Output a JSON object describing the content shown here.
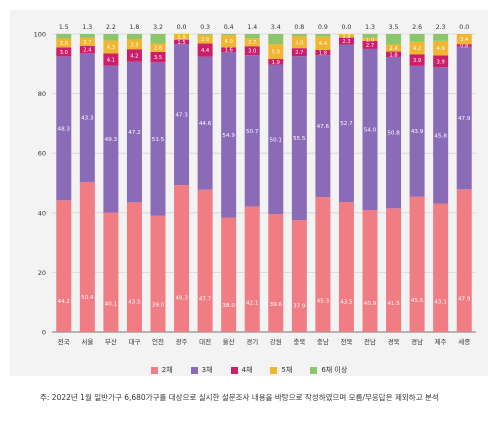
{
  "colors": {
    "s2": "#f07c84",
    "s3": "#8a6bb8",
    "s4": "#cc1f6a",
    "s5": "#f2b531",
    "s6": "#8cc66a",
    "grid": "#d4d4d4",
    "axis": "#555555",
    "label": "#333333",
    "panel": "#f3f3f3"
  },
  "chart_data": {
    "type": "bar",
    "stacked": true,
    "ylim": [
      0,
      100
    ],
    "yticks": [
      0,
      20,
      40,
      60,
      80,
      100
    ],
    "grid": true,
    "legend_position": "bottom",
    "categories": [
      "전국",
      "서울",
      "부산",
      "대구",
      "인천",
      "광주",
      "대전",
      "울산",
      "경기",
      "강원",
      "충북",
      "충남",
      "전북",
      "전남",
      "경북",
      "경남",
      "제주",
      "세종"
    ],
    "series": [
      {
        "name": "2채",
        "key": "s2",
        "values": [
          44.2,
          50.4,
          40.1,
          43.5,
          39.0,
          49.3,
          47.7,
          38.0,
          42.1,
          39.6,
          37.9,
          45.3,
          43.5,
          40.9,
          41.5,
          45.5,
          43.1,
          47.9
        ]
      },
      {
        "name": "3채",
        "key": "s3",
        "values": [
          48.3,
          43.3,
          49.3,
          47.2,
          51.5,
          47.3,
          44.6,
          54.9,
          50.7,
          50.1,
          55.5,
          47.6,
          52.7,
          54.0,
          50.8,
          43.9,
          45.8,
          47.9
        ]
      },
      {
        "name": "4채",
        "key": "s4",
        "values": [
          3.0,
          2.4,
          4.1,
          4.2,
          3.5,
          1.5,
          4.4,
          1.6,
          3.0,
          1.9,
          2.7,
          1.8,
          2.3,
          2.7,
          1.8,
          3.9,
          3.9,
          0.8
        ]
      },
      {
        "name": "5채",
        "key": "s5",
        "values": [
          3.0,
          2.7,
          4.3,
          3.3,
          2.8,
          1.9,
          2.9,
          4.0,
          2.7,
          5.0,
          4.0,
          4.4,
          1.2,
          1.0,
          2.4,
          4.2,
          4.9,
          3.4
        ]
      },
      {
        "name": "6채 이상",
        "key": "s6",
        "values": [
          1.5,
          1.3,
          2.2,
          1.8,
          3.2,
          0.0,
          0.3,
          0.4,
          1.4,
          3.4,
          0.8,
          0.9,
          0.0,
          1.3,
          3.5,
          2.6,
          2.3,
          0.0
        ]
      }
    ]
  },
  "footnote": "주: 2022년 1월 일반가구 6,680가구를 대상으로 실시한 설문조사 내용을 바탕으로 작성하였으며 모름/무응답은 제외하고 분석"
}
